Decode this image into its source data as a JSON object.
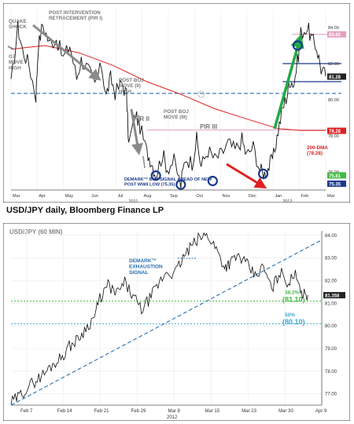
{
  "caption": "USD/JPY daily, Bloomberg Finance LP",
  "colors": {
    "red": "#e02020",
    "green": "#22aa44",
    "navy": "#1b3a8c",
    "grey": "#8a8a8a",
    "blue_dash": "#2a6fb0",
    "pink": "#e6a0c0",
    "cyan": "#3aa8d8",
    "green_dot": "#44bb44"
  },
  "chart_data": [
    {
      "type": "line",
      "title": "",
      "x_ticks": [
        "Mar",
        "Apr",
        "May",
        "Jun",
        "Jul",
        "Aug",
        "Sep",
        "Oct",
        "Nov",
        "Dec",
        "Jan",
        "Feb",
        "Mar"
      ],
      "year_labels": [
        "2011",
        "2012"
      ],
      "ylim": [
        75.0,
        85.0
      ],
      "y_ticks": [
        76.0,
        78.0,
        80.0,
        82.0,
        84.0
      ],
      "y_tags": [
        {
          "label": "83.62",
          "value": 83.62,
          "color": "#e6a0c0"
        },
        {
          "label": "81.28",
          "value": 81.28,
          "color": "#222222"
        },
        {
          "label": "78.28",
          "value": 78.28,
          "color": "#e02020"
        },
        {
          "label": "75.81",
          "value": 75.81,
          "color": "#44bb44"
        },
        {
          "label": "75.35",
          "value": 75.35,
          "color": "#1b3a8c"
        }
      ],
      "price": [
        [
          0,
          80.8
        ],
        [
          3,
          84.0
        ],
        [
          5,
          82.8
        ],
        [
          8,
          81.9
        ],
        [
          11,
          80.2
        ],
        [
          12,
          82.9
        ],
        [
          14,
          84.2
        ],
        [
          17,
          83.1
        ],
        [
          20,
          83.4
        ],
        [
          23,
          82.3
        ],
        [
          26,
          83.0
        ],
        [
          29,
          81.2
        ],
        [
          31,
          82.2
        ],
        [
          34,
          81.7
        ],
        [
          37,
          80.8
        ],
        [
          40,
          81.9
        ],
        [
          42,
          80.2
        ],
        [
          44,
          81.2
        ],
        [
          46,
          80.4
        ],
        [
          49,
          80.9
        ],
        [
          51,
          80.3
        ],
        [
          52,
          77.5
        ],
        [
          55,
          79.3
        ],
        [
          57,
          78.5
        ],
        [
          60,
          77.1
        ],
        [
          62,
          76.6
        ],
        [
          64,
          75.8
        ],
        [
          67,
          77.0
        ],
        [
          69,
          76.2
        ],
        [
          72,
          76.6
        ],
        [
          75,
          75.3
        ],
        [
          77,
          76.8
        ],
        [
          80,
          76.5
        ],
        [
          82,
          77.8
        ],
        [
          84,
          76.3
        ],
        [
          87,
          77.2
        ],
        [
          90,
          76.7
        ],
        [
          93,
          77.0
        ],
        [
          96,
          77.6
        ],
        [
          99,
          77.2
        ],
        [
          102,
          77.8
        ],
        [
          104,
          76.9
        ],
        [
          107,
          77.4
        ],
        [
          110,
          76.1
        ],
        [
          112,
          75.9
        ],
        [
          114,
          76.3
        ],
        [
          116,
          76.9
        ],
        [
          118,
          78.3
        ],
        [
          120,
          79.5
        ],
        [
          122,
          80.3
        ],
        [
          123,
          81.1
        ],
        [
          125,
          80.9
        ],
        [
          127,
          82.5
        ],
        [
          128,
          83.7
        ],
        [
          131,
          84.0
        ],
        [
          133,
          83.3
        ],
        [
          135,
          82.9
        ],
        [
          137,
          81.7
        ],
        [
          139,
          81.3
        ]
      ],
      "dma200": [
        [
          0,
          82.8
        ],
        [
          15,
          83.0
        ],
        [
          30,
          82.6
        ],
        [
          45,
          81.9
        ],
        [
          60,
          81.0
        ],
        [
          75,
          80.3
        ],
        [
          90,
          79.5
        ],
        [
          105,
          78.9
        ],
        [
          118,
          78.4
        ],
        [
          128,
          78.3
        ],
        [
          139,
          78.3
        ]
      ],
      "levels": [
        {
          "name": "post-intervention-retracement",
          "value": 80.35,
          "style": "dash",
          "color": "#2a6fb0"
        },
        {
          "name": "level-82",
          "value": 82.0,
          "style": "solid",
          "color": "#1b3a8c"
        },
        {
          "name": "level-81",
          "value": 81.0,
          "style": "solid",
          "color": "#1b3a8c"
        },
        {
          "name": "pink-high",
          "value": 83.62,
          "style": "solid",
          "color": "#e6a0c0"
        },
        {
          "name": "pink-low",
          "value": 78.28,
          "style": "solid",
          "color": "#e6a0c0"
        }
      ],
      "annotations": [
        "QUAKE SHOCK",
        "G7 MOVE HIGH",
        "POST INTERVENTION RETRACEMENT (PIR I)",
        "POST BOJ MOVE (II) HIGH",
        "PIR II",
        "POST BOJ MOVE (III)",
        "PIR III",
        "200-DMA (78.28)",
        "DEMARK™ BUY SIGNAL AHEAD OF NEW POST WWII LOW (75.35)"
      ]
    },
    {
      "type": "line",
      "title": "USD/JPY (60 MIN)",
      "x_ticks": [
        "Feb 7",
        "Feb 14",
        "Feb 21",
        "Feb 29",
        "Mar 8",
        "Mar 15",
        "Mar 23",
        "Mar 30",
        "Apr 9"
      ],
      "year_label": "2012",
      "ylim": [
        76.5,
        84.2
      ],
      "y_ticks": [
        77.0,
        78.0,
        79.0,
        80.0,
        81.0,
        82.0,
        83.0,
        84.0
      ],
      "last_value": 81.358,
      "price": [
        [
          0,
          76.6
        ],
        [
          3,
          76.9
        ],
        [
          6,
          77.3
        ],
        [
          9,
          77.6
        ],
        [
          12,
          77.9
        ],
        [
          15,
          78.3
        ],
        [
          18,
          78.6
        ],
        [
          21,
          79.1
        ],
        [
          24,
          79.4
        ],
        [
          27,
          79.9
        ],
        [
          30,
          80.4
        ],
        [
          32,
          81.2
        ],
        [
          35,
          81.8
        ],
        [
          38,
          81.4
        ],
        [
          41,
          81.9
        ],
        [
          44,
          81.3
        ],
        [
          47,
          80.7
        ],
        [
          50,
          81.2
        ],
        [
          53,
          81.8
        ],
        [
          56,
          82.4
        ],
        [
          59,
          82.3
        ],
        [
          62,
          83.0
        ],
        [
          65,
          83.5
        ],
        [
          68,
          83.9
        ],
        [
          71,
          84.0
        ],
        [
          74,
          83.4
        ],
        [
          77,
          82.6
        ],
        [
          79,
          82.8
        ],
        [
          82,
          83.1
        ],
        [
          85,
          82.7
        ],
        [
          88,
          82.2
        ],
        [
          91,
          82.6
        ],
        [
          94,
          81.6
        ],
        [
          97,
          82.4
        ],
        [
          100,
          81.9
        ],
        [
          103,
          82.3
        ],
        [
          105,
          81.4
        ],
        [
          107,
          81.36
        ]
      ],
      "trendline": [
        [
          0,
          76.5
        ],
        [
          112,
          83.8
        ]
      ],
      "retracements": [
        {
          "label": "38.2%",
          "value_label": "(81.10)",
          "value": 81.1,
          "color": "#44bb44"
        },
        {
          "label": "50%",
          "value_label": "(80.10)",
          "value": 80.1,
          "color": "#3aa8d8"
        }
      ],
      "annotations": [
        "DEMARK™ EXHAUSTION SIGNAL"
      ]
    }
  ]
}
